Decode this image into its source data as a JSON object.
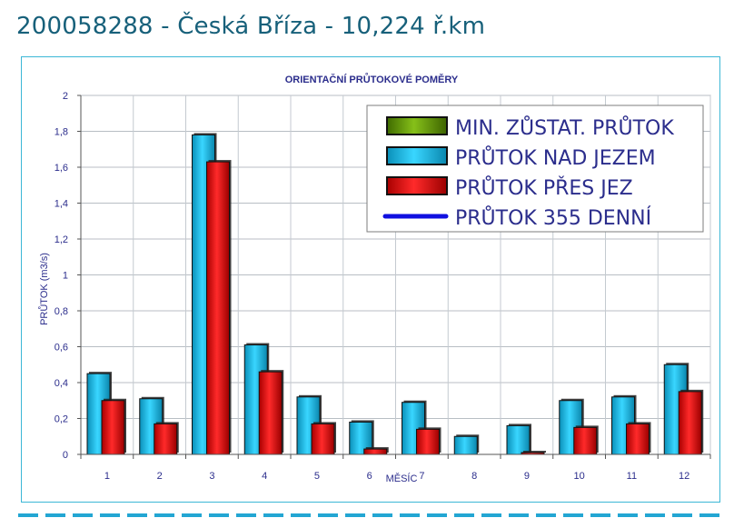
{
  "header": {
    "title": "200058288 - Česká Bříza - 10,224 ř.km"
  },
  "chart_data": {
    "type": "bar",
    "title": "ORIENTAČNÍ PRŮTOKOVÉ POMĚRY",
    "xlabel": "MĚSÍC",
    "ylabel": "PRŮTOK  (m3/s)",
    "ylim": [
      0,
      2
    ],
    "yticks": [
      0,
      0.2,
      0.4,
      0.6,
      0.8,
      1,
      1.2,
      1.4,
      1.6,
      1.8,
      2
    ],
    "ytick_labels": [
      "0",
      "0,2",
      "0,4",
      "0,6",
      "0,8",
      "1",
      "1,2",
      "1,4",
      "1,6",
      "1,8",
      "2"
    ],
    "categories": [
      "1",
      "2",
      "3",
      "4",
      "5",
      "6",
      "7",
      "8",
      "9",
      "10",
      "11",
      "12"
    ],
    "grid": true,
    "legend_position": "top-right",
    "series": [
      {
        "name": "MIN. ZŮSTAT. PRŮTOK",
        "kind": "bar",
        "color": "#6b9e10",
        "values": [
          0,
          0,
          0,
          0,
          0,
          0,
          0,
          0,
          0,
          0,
          0,
          0
        ]
      },
      {
        "name": "PRŮTOK NAD JEZEM",
        "kind": "bar",
        "color": "#1cc6ee",
        "values": [
          0.45,
          0.31,
          1.78,
          0.61,
          0.32,
          0.18,
          0.29,
          0.1,
          0.16,
          0.3,
          0.32,
          0.5
        ]
      },
      {
        "name": "PRŮTOK PŘES JEZ",
        "kind": "bar",
        "color": "#e01010",
        "values": [
          0.3,
          0.17,
          1.63,
          0.46,
          0.17,
          0.03,
          0.14,
          0,
          0.01,
          0.15,
          0.17,
          0.35
        ]
      },
      {
        "name": "PRŮTOK 355 DENNÍ",
        "kind": "line",
        "color": "#1010e0",
        "values": [
          0,
          0,
          0,
          0,
          0,
          0,
          0,
          0,
          0,
          0,
          0,
          0
        ]
      }
    ]
  }
}
